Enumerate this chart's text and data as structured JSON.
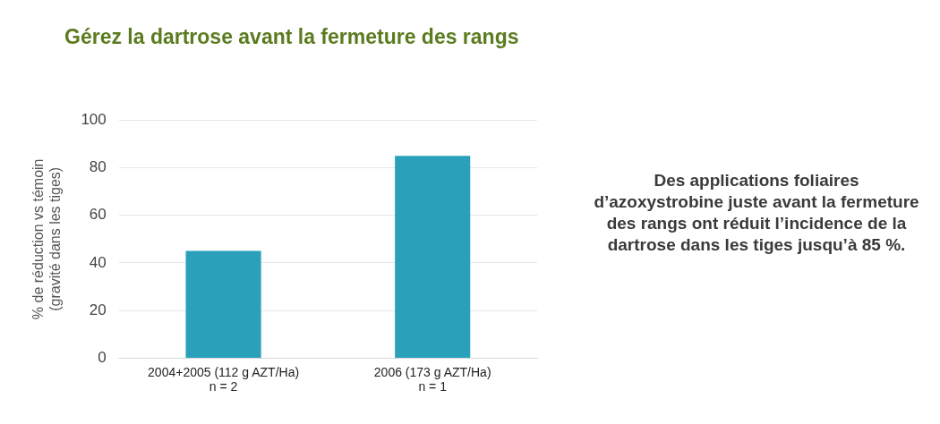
{
  "chart_data": {
    "type": "bar",
    "title": "Gérez la dartrose avant la fermeture des rangs",
    "ylabel": "% de réduction vs témoin\n(gravité dans les tiges)",
    "categories": [
      "2004+2005 (112 g AZT/Ha)\nn = 2",
      "2006 (173 g AZT/Ha)\nn = 1"
    ],
    "values": [
      45,
      85
    ],
    "color": "#2aa0bb",
    "ylim": [
      0,
      100
    ],
    "yticks": [
      0,
      20,
      40,
      60,
      80,
      100
    ],
    "grid": "y",
    "annotations": [
      "Des applications foliaires d’azoxystrobine juste avant la fermeture des rangs ont réduit l’incidence de la dartrose dans les tiges jusqu’à 85 %."
    ]
  }
}
